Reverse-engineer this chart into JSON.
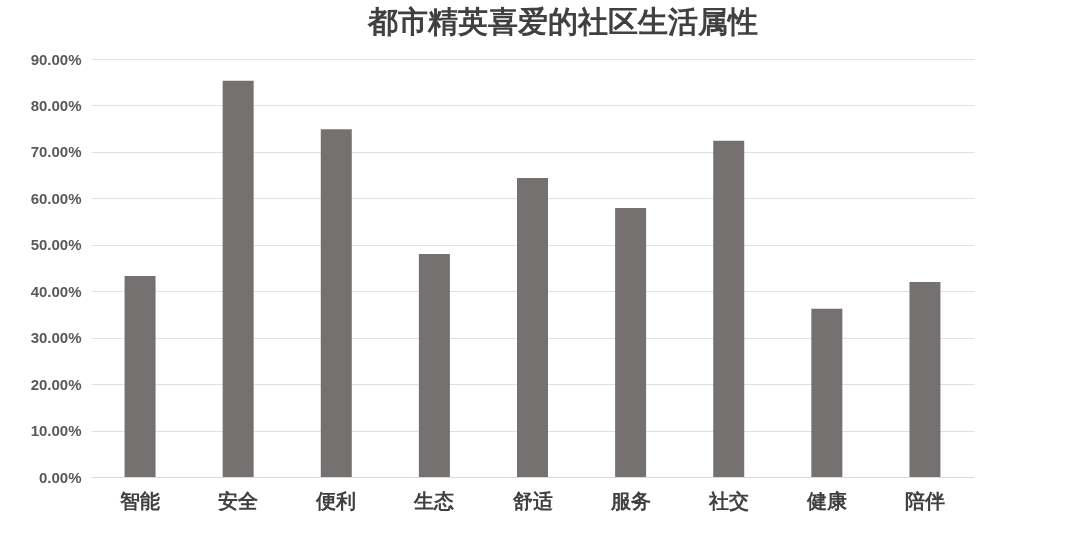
{
  "chart_data": {
    "type": "bar",
    "title": "都市精英喜爱的社区生活属性",
    "categories": [
      "智能",
      "安全",
      "便利",
      "生态",
      "舒适",
      "服务",
      "社交",
      "健康",
      "陪伴"
    ],
    "values": [
      43.3,
      85.3,
      74.9,
      48.0,
      64.4,
      57.9,
      72.4,
      36.2,
      42.0
    ],
    "color": "#757171",
    "ylim": [
      0,
      90
    ],
    "yticks": [
      {
        "value": 0,
        "label": "0.00%"
      },
      {
        "value": 10,
        "label": "10.00%"
      },
      {
        "value": 20,
        "label": "20.00%"
      },
      {
        "value": 30,
        "label": "30.00%"
      },
      {
        "value": 40,
        "label": "40.00%"
      },
      {
        "value": 50,
        "label": "50.00%"
      },
      {
        "value": 60,
        "label": "60.00%"
      },
      {
        "value": 70,
        "label": "70.00%"
      },
      {
        "value": 80,
        "label": "80.00%"
      },
      {
        "value": 90,
        "label": "90.00%"
      }
    ],
    "grid": "y"
  }
}
